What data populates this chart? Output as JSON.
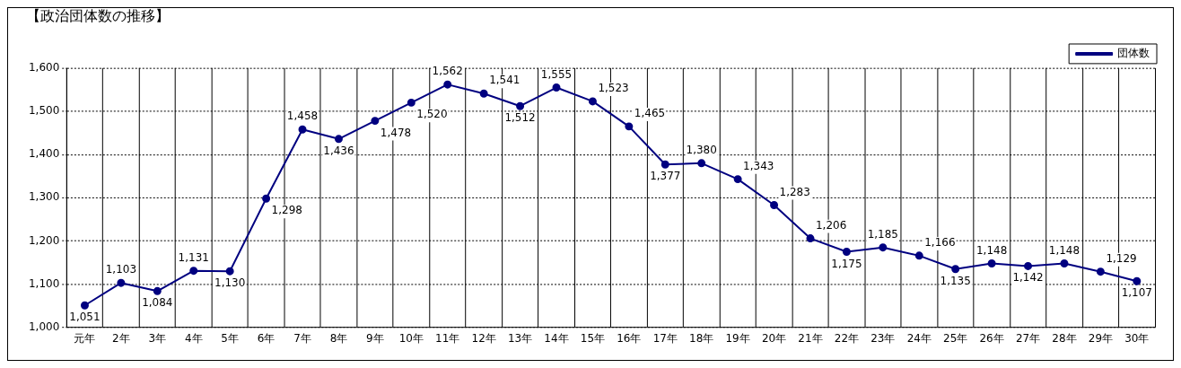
{
  "chart_data": {
    "type": "line",
    "title": "【政治団体数の推移】",
    "categories": [
      "元年",
      "2年",
      "3年",
      "4年",
      "5年",
      "6年",
      "7年",
      "8年",
      "9年",
      "10年",
      "11年",
      "12年",
      "13年",
      "14年",
      "15年",
      "16年",
      "17年",
      "18年",
      "19年",
      "20年",
      "21年",
      "22年",
      "23年",
      "24年",
      "25年",
      "26年",
      "27年",
      "28年",
      "29年",
      "30年"
    ],
    "series": [
      {
        "name": "団体数",
        "color": "#000080",
        "values": [
          1051,
          1103,
          1084,
          1131,
          1130,
          1298,
          1458,
          1436,
          1478,
          1520,
          1562,
          1541,
          1512,
          1555,
          1523,
          1465,
          1377,
          1380,
          1343,
          1283,
          1206,
          1175,
          1185,
          1166,
          1135,
          1148,
          1142,
          1148,
          1129,
          1107
        ],
        "value_labels": [
          "1,051",
          "1,103",
          "1,084",
          "1,131",
          "1,130",
          "1,298",
          "1,458",
          "1,436",
          "1,478",
          "1,520",
          "1,562",
          "1,541",
          "1,512",
          "1,555",
          "1,523",
          "1,465",
          "1,377",
          "1,380",
          "1,343",
          "1,283",
          "1,206",
          "1,175",
          "1,185",
          "1,166",
          "1,135",
          "1,148",
          "1,142",
          "1,148",
          "1,129",
          "1,107"
        ]
      }
    ],
    "ylim": [
      1000,
      1600
    ],
    "yticks": [
      {
        "value": 1000,
        "label": "1,000"
      },
      {
        "value": 1100,
        "label": "1,100"
      },
      {
        "value": 1200,
        "label": "1,200"
      },
      {
        "value": 1300,
        "label": "1,300"
      },
      {
        "value": 1400,
        "label": "1,400"
      },
      {
        "value": 1500,
        "label": "1,500"
      },
      {
        "value": 1600,
        "label": "1,600"
      }
    ],
    "grid": true,
    "legend": "top right",
    "marker": "circle",
    "line_style": "solid"
  }
}
